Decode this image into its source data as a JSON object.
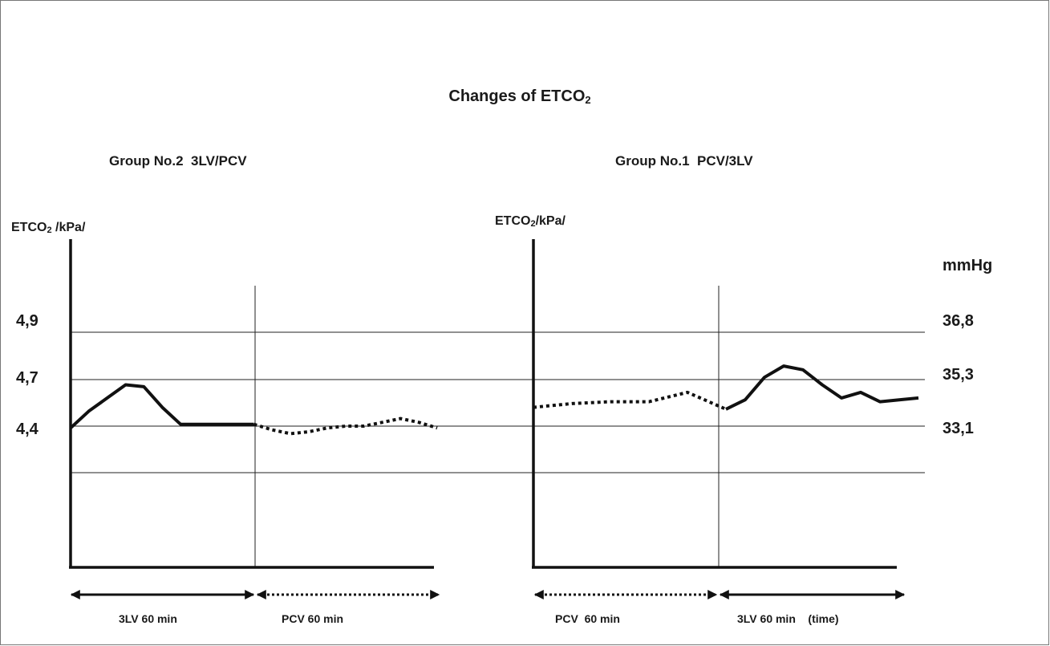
{
  "chart_data": {
    "type": "line",
    "title": "Changes of ETCO",
    "title_subscript": "2",
    "y_ticks_left": [
      "4,9",
      "4,7",
      "4,4"
    ],
    "y_ticks_right_label": "mmHg",
    "y_ticks_right": [
      "36,8",
      "35,3",
      "33,1"
    ],
    "grid": "horizontal",
    "charts": [
      {
        "subtitle": "Group No.2  3LV/PCV",
        "ylabel_main": "ETCO",
        "ylabel_sub": "2",
        "ylabel_unit": " /kPa/",
        "series": [
          {
            "style": "solid",
            "x": [
              0,
              1,
              2,
              3,
              4,
              5,
              6,
              7,
              8,
              9,
              10
            ],
            "values": [
              4.39,
              4.48,
              4.55,
              4.62,
              4.61,
              4.5,
              4.41,
              4.41,
              4.41,
              4.41,
              4.41
            ]
          },
          {
            "style": "dotted",
            "x": [
              10,
              11,
              12,
              13,
              14,
              15,
              16,
              17,
              18,
              19,
              20
            ],
            "values": [
              4.41,
              4.38,
              4.36,
              4.37,
              4.39,
              4.4,
              4.4,
              4.42,
              4.44,
              4.42,
              4.39
            ]
          }
        ],
        "phases": [
          {
            "label": "3LV 60 min",
            "style": "solid"
          },
          {
            "label": "PCV 60 min",
            "style": "dotted"
          }
        ]
      },
      {
        "subtitle": "Group No.1  PCV/3LV",
        "ylabel_main": "ETCO",
        "ylabel_sub": "2",
        "ylabel_unit": "/kPa/",
        "series": [
          {
            "style": "dotted",
            "x": [
              0,
              2,
              4,
              6,
              8,
              10
            ],
            "values": [
              4.5,
              4.52,
              4.53,
              4.53,
              4.58,
              4.49
            ]
          },
          {
            "style": "solid",
            "x": [
              10,
              11,
              12,
              13,
              14,
              15,
              16,
              17,
              18,
              19,
              20
            ],
            "values": [
              4.49,
              4.54,
              4.66,
              4.72,
              4.7,
              4.62,
              4.55,
              4.58,
              4.53,
              4.54,
              4.55
            ]
          }
        ],
        "phases": [
          {
            "label": "PCV  60 min",
            "style": "dotted"
          },
          {
            "label": "3LV 60 min    (time)",
            "style": "solid"
          }
        ]
      }
    ]
  }
}
